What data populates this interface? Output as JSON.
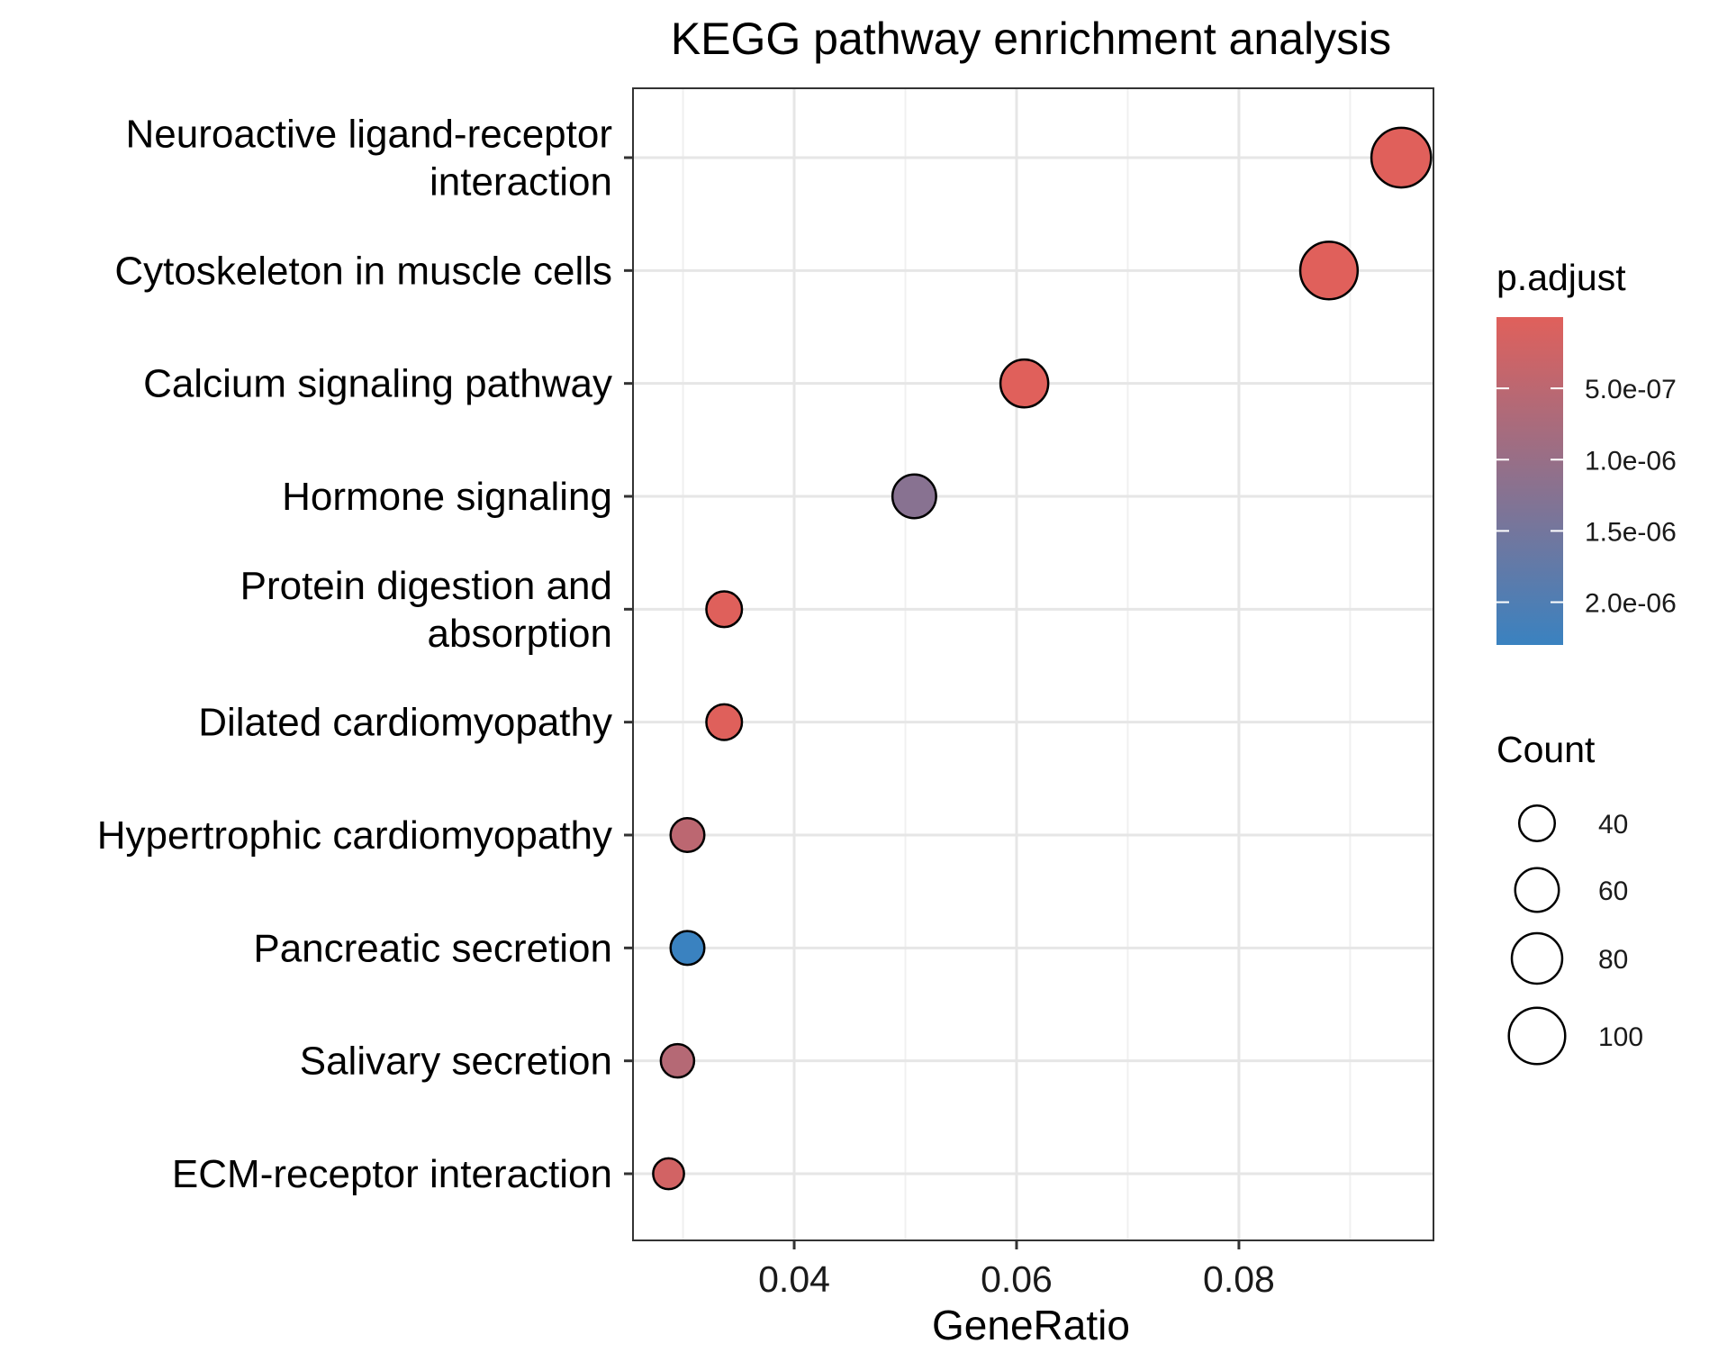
{
  "chart_data": {
    "type": "scatter",
    "title": "KEGG pathway enrichment analysis",
    "xlabel": "GeneRatio",
    "ylabel": "",
    "xlim": [
      0.0255,
      0.0975
    ],
    "x_ticks": [
      {
        "value": 0.04,
        "label": "0.04"
      },
      {
        "value": 0.06,
        "label": "0.06"
      },
      {
        "value": 0.08,
        "label": "0.08"
      }
    ],
    "grid": true,
    "points": [
      {
        "label_lines": [
          "Neuroactive ligand-receptor",
          "interaction"
        ],
        "x": 0.0946,
        "count": 112,
        "p_adjust": 1e-10
      },
      {
        "label_lines": [
          "Cytoskeleton in muscle cells"
        ],
        "x": 0.0881,
        "count": 104,
        "p_adjust": 1e-10
      },
      {
        "label_lines": [
          "Calcium signaling pathway"
        ],
        "x": 0.0607,
        "count": 72,
        "p_adjust": 1e-09
      },
      {
        "label_lines": [
          "Hormone signaling"
        ],
        "x": 0.0508,
        "count": 60,
        "p_adjust": 1.22e-06
      },
      {
        "label_lines": [
          "Protein digestion and",
          "absorption"
        ],
        "x": 0.0337,
        "count": 40,
        "p_adjust": 1e-08
      },
      {
        "label_lines": [
          "Dilated cardiomyopathy"
        ],
        "x": 0.0337,
        "count": 40,
        "p_adjust": 1e-08
      },
      {
        "label_lines": [
          "Hypertrophic cardiomyopathy"
        ],
        "x": 0.0304,
        "count": 36,
        "p_adjust": 5e-07
      },
      {
        "label_lines": [
          "Pancreatic secretion"
        ],
        "x": 0.0304,
        "count": 36,
        "p_adjust": 2.3e-06
      },
      {
        "label_lines": [
          "Salivary secretion"
        ],
        "x": 0.0295,
        "count": 35,
        "p_adjust": 6e-07
      },
      {
        "label_lines": [
          "ECM-receptor interaction"
        ],
        "x": 0.0287,
        "count": 30,
        "p_adjust": 2e-07
      }
    ],
    "legend": {
      "placement": "right",
      "color": {
        "title": "p.adjust",
        "low_color": "#E0605B",
        "high_color": "#3A82C0",
        "range": [
          1e-10,
          2.3e-06
        ],
        "ticks": [
          {
            "value": 5e-07,
            "label": "5.0e-07"
          },
          {
            "value": 1e-06,
            "label": "1.0e-06"
          },
          {
            "value": 1.5e-06,
            "label": "1.5e-06"
          },
          {
            "value": 2e-06,
            "label": "2.0e-06"
          }
        ]
      },
      "size": {
        "title": "Count",
        "entries": [
          {
            "value": 40,
            "label": "40"
          },
          {
            "value": 60,
            "label": "60"
          },
          {
            "value": 80,
            "label": "80"
          },
          {
            "value": 100,
            "label": "100"
          }
        ]
      }
    }
  }
}
